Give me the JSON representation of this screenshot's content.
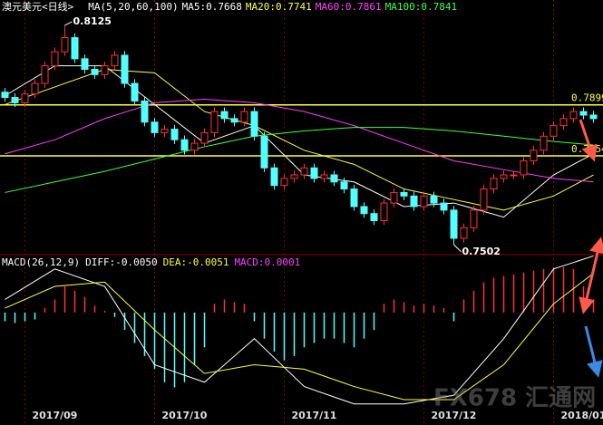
{
  "chart_data": [
    {
      "type": "candlestick",
      "title": "澳元美元<日线>",
      "indicator": "MA(5,20,60,100)",
      "up_color": "#ff3232",
      "down_color": "#54ffff",
      "xlim": [
        -0.5,
        59.5
      ],
      "ylim": [
        0.7476,
        0.8197
      ],
      "xticks": [
        {
          "value": 2,
          "label": "2017/09"
        },
        {
          "value": 15,
          "label": "2017/10"
        },
        {
          "value": 28,
          "label": "2017/11"
        },
        {
          "value": 42,
          "label": "2017/12"
        },
        {
          "value": 55,
          "label": "2018/01"
        }
      ],
      "levels": [
        0.7899,
        0.7754
      ],
      "level_color": "#ffff40",
      "annotations": [
        {
          "x": 6,
          "value": 0.8125
        },
        {
          "x": 45,
          "value": 0.7502
        }
      ],
      "ohlc": [
        [
          0.7935,
          0.7947,
          0.7908,
          0.792
        ],
        [
          0.792,
          0.7932,
          0.7893,
          0.7905
        ],
        [
          0.7905,
          0.7942,
          0.7893,
          0.793
        ],
        [
          0.793,
          0.7972,
          0.7918,
          0.796
        ],
        [
          0.796,
          0.8022,
          0.7948,
          0.801
        ],
        [
          0.801,
          0.8062,
          0.7998,
          0.805
        ],
        [
          0.805,
          0.8125,
          0.8038,
          0.809
        ],
        [
          0.809,
          0.8102,
          0.8018,
          0.803
        ],
        [
          0.803,
          0.8042,
          0.7988,
          0.8
        ],
        [
          0.8,
          0.8012,
          0.7973,
          0.7985
        ],
        [
          0.7985,
          0.8022,
          0.7973,
          0.801
        ],
        [
          0.801,
          0.8052,
          0.7998,
          0.804
        ],
        [
          0.804,
          0.8052,
          0.7948,
          0.796
        ],
        [
          0.796,
          0.7972,
          0.7898,
          0.791
        ],
        [
          0.791,
          0.7922,
          0.7838,
          0.785
        ],
        [
          0.785,
          0.7862,
          0.7808,
          0.782
        ],
        [
          0.782,
          0.7842,
          0.7808,
          0.783
        ],
        [
          0.783,
          0.7842,
          0.7788,
          0.78
        ],
        [
          0.78,
          0.7812,
          0.7758,
          0.777
        ],
        [
          0.777,
          0.7802,
          0.7758,
          0.779
        ],
        [
          0.779,
          0.7832,
          0.7778,
          0.782
        ],
        [
          0.782,
          0.7892,
          0.7808,
          0.788
        ],
        [
          0.788,
          0.7892,
          0.7848,
          0.786
        ],
        [
          0.786,
          0.7872,
          0.7838,
          0.785
        ],
        [
          0.785,
          0.7892,
          0.7838,
          0.788
        ],
        [
          0.788,
          0.7892,
          0.7798,
          0.781
        ],
        [
          0.781,
          0.7822,
          0.7708,
          0.772
        ],
        [
          0.772,
          0.7732,
          0.7658,
          0.767
        ],
        [
          0.767,
          0.7702,
          0.7658,
          0.769
        ],
        [
          0.769,
          0.7712,
          0.7678,
          0.77
        ],
        [
          0.77,
          0.7732,
          0.7688,
          0.772
        ],
        [
          0.772,
          0.7732,
          0.7678,
          0.769
        ],
        [
          0.769,
          0.7712,
          0.7678,
          0.77
        ],
        [
          0.77,
          0.7712,
          0.7668,
          0.768
        ],
        [
          0.768,
          0.7692,
          0.7648,
          0.766
        ],
        [
          0.766,
          0.7672,
          0.7598,
          0.761
        ],
        [
          0.761,
          0.7622,
          0.7578,
          0.759
        ],
        [
          0.759,
          0.7602,
          0.7558,
          0.757
        ],
        [
          0.757,
          0.7632,
          0.7558,
          0.762
        ],
        [
          0.762,
          0.7662,
          0.7608,
          0.765
        ],
        [
          0.765,
          0.7662,
          0.7628,
          0.764
        ],
        [
          0.764,
          0.7652,
          0.7598,
          0.761
        ],
        [
          0.761,
          0.7652,
          0.7598,
          0.764
        ],
        [
          0.764,
          0.7652,
          0.7608,
          0.762
        ],
        [
          0.762,
          0.7632,
          0.7588,
          0.76
        ],
        [
          0.76,
          0.7612,
          0.7502,
          0.752
        ],
        [
          0.752,
          0.7562,
          0.7508,
          0.755
        ],
        [
          0.755,
          0.7612,
          0.7538,
          0.76
        ],
        [
          0.76,
          0.7672,
          0.7588,
          0.766
        ],
        [
          0.766,
          0.7702,
          0.7648,
          0.769
        ],
        [
          0.769,
          0.7712,
          0.7678,
          0.77
        ],
        [
          0.77,
          0.7712,
          0.7688,
          0.77
        ],
        [
          0.77,
          0.7752,
          0.7688,
          0.774
        ],
        [
          0.774,
          0.7782,
          0.7728,
          0.777
        ],
        [
          0.777,
          0.7822,
          0.7758,
          0.781
        ],
        [
          0.781,
          0.7852,
          0.7798,
          0.784
        ],
        [
          0.784,
          0.7872,
          0.7828,
          0.786
        ],
        [
          0.786,
          0.7892,
          0.7848,
          0.788
        ],
        [
          0.788,
          0.7892,
          0.7858,
          0.787
        ],
        [
          0.787,
          0.7882,
          0.7848,
          0.786
        ]
      ],
      "series": [
        {
          "name": "MA5:",
          "color": "#ffffff",
          "legend_value": 0.7668,
          "x": [
            0,
            5,
            10,
            15,
            20,
            25,
            30,
            35,
            40,
            45,
            50,
            55,
            59
          ],
          "values": [
            0.7925,
            0.801,
            0.801,
            0.79,
            0.779,
            0.784,
            0.77,
            0.768,
            0.761,
            0.762,
            0.758,
            0.77,
            0.776
          ]
        },
        {
          "name": "MA20:",
          "color": "#ffff40",
          "legend_value": 0.7741,
          "x": [
            0,
            5,
            10,
            15,
            20,
            25,
            30,
            35,
            40,
            45,
            50,
            55,
            59
          ],
          "values": [
            0.79,
            0.795,
            0.8,
            0.799,
            0.788,
            0.784,
            0.777,
            0.773,
            0.766,
            0.763,
            0.76,
            0.764,
            0.77
          ]
        },
        {
          "name": "MA60:",
          "color": "#ff40ff",
          "legend_value": 0.7861,
          "x": [
            0,
            5,
            10,
            15,
            20,
            25,
            30,
            35,
            40,
            45,
            50,
            55,
            59
          ],
          "values": [
            0.776,
            0.78,
            0.786,
            0.7905,
            0.7915,
            0.7905,
            0.788,
            0.784,
            0.779,
            0.774,
            0.7715,
            0.769,
            0.768
          ]
        },
        {
          "name": "MA100:",
          "color": "#40ff40",
          "legend_value": 0.7841,
          "x": [
            0,
            5,
            10,
            15,
            20,
            25,
            30,
            35,
            40,
            45,
            50,
            55,
            59
          ],
          "values": [
            0.765,
            0.768,
            0.771,
            0.7745,
            0.778,
            0.781,
            0.7825,
            0.7835,
            0.7835,
            0.7825,
            0.781,
            0.7795,
            0.7785
          ]
        }
      ]
    },
    {
      "type": "macd",
      "title": "MACD(26,12,9)",
      "xlim": [
        -0.5,
        59.5
      ],
      "ylim": [
        -0.0125,
        0.008
      ],
      "pos_color": "#ff3232",
      "neg_color": "#54ffff",
      "series": [
        {
          "name": "DIFF:",
          "color": "#ffffff",
          "legend_value": -0.005,
          "legend_value_label": "-0.0050",
          "x": [
            0,
            5,
            10,
            15,
            20,
            25,
            30,
            35,
            40,
            45,
            50,
            55,
            59
          ],
          "values": [
            0.0015,
            0.005,
            0.003,
            -0.006,
            -0.008,
            -0.003,
            -0.0085,
            -0.0105,
            -0.0105,
            -0.0095,
            -0.003,
            0.005,
            0.0065
          ]
        },
        {
          "name": "DEA:",
          "color": "#ffff40",
          "legend_value": -0.0051,
          "x": [
            0,
            5,
            10,
            15,
            20,
            25,
            30,
            35,
            40,
            45,
            50,
            55,
            59
          ],
          "values": [
            0.0005,
            0.003,
            0.0035,
            -0.002,
            -0.007,
            -0.006,
            -0.0065,
            -0.0085,
            -0.01,
            -0.01,
            -0.006,
            0.001,
            0.0045
          ]
        }
      ],
      "histogram": {
        "name": "MACD:",
        "color": "#ff40ff",
        "legend_value": 0.0001,
        "values": [
          -0.001,
          -0.0012,
          -0.001,
          -0.0008,
          0.0005,
          0.0015,
          0.003,
          0.0025,
          0.0018,
          0.0008,
          0.0002,
          -0.0005,
          -0.002,
          -0.0035,
          -0.005,
          -0.0065,
          -0.008,
          -0.0086,
          -0.008,
          -0.006,
          -0.004,
          0.001,
          0.0015,
          0.0012,
          0.001,
          -0.001,
          -0.003,
          -0.0045,
          -0.0055,
          -0.005,
          -0.004,
          -0.0035,
          -0.003,
          -0.003,
          -0.0035,
          -0.004,
          -0.003,
          -0.002,
          0.001,
          0.0015,
          0.0012,
          0.0008,
          0.001,
          0.0008,
          0.0005,
          -0.001,
          0.0015,
          0.0025,
          0.0035,
          0.004,
          0.0042,
          0.0044,
          0.0046,
          0.0048,
          0.005,
          0.0052,
          0.0052,
          0.005,
          0.003,
          0.0015
        ]
      }
    }
  ],
  "watermark": "FX678 汇通网"
}
